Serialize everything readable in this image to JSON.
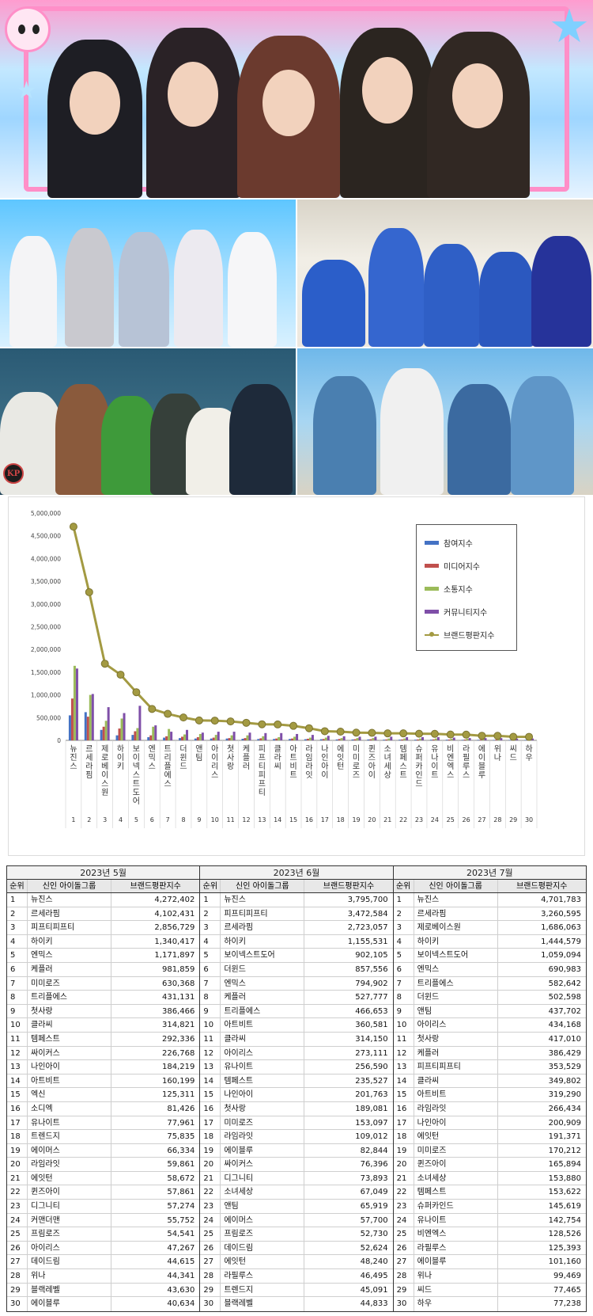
{
  "photos": [
    {
      "label": "group-photo-top"
    },
    {
      "label": "group-photo-middle-left"
    },
    {
      "label": "group-photo-middle-right"
    },
    {
      "label": "group-photo-bottom-left"
    },
    {
      "label": "group-photo-bottom-right"
    }
  ],
  "chart_data": {
    "type": "bar",
    "categories": [
      "뉴진스",
      "르세라핌",
      "제로베이스원",
      "하이키",
      "보이넥스트도어",
      "엔믹스",
      "트리플에스",
      "더윈드",
      "앤팀",
      "아이리스",
      "첫사랑",
      "케플러",
      "피프티피프티",
      "클라씨",
      "아트비트",
      "라임라잇",
      "나인아이",
      "에잇턴",
      "미미로즈",
      "퀸즈아이",
      "소녀세상",
      "템페스트",
      "슈퍼카인드",
      "유나이트",
      "비엔엑스",
      "라필루스",
      "에이블루",
      "위나",
      "씨드",
      "하우"
    ],
    "rank_labels": [
      "1",
      "2",
      "3",
      "4",
      "5",
      "6",
      "7",
      "8",
      "9",
      "10",
      "11",
      "12",
      "13",
      "14",
      "15",
      "16",
      "17",
      "18",
      "19",
      "20",
      "21",
      "22",
      "23",
      "24",
      "25",
      "26",
      "27",
      "28",
      "29",
      "30"
    ],
    "series": [
      {
        "name": "참여지수",
        "type": "bar",
        "values": [
          550000,
          620000,
          230000,
          110000,
          120000,
          70000,
          60000,
          50000,
          40000,
          40000,
          40000,
          35000,
          30000,
          30000,
          30000,
          25000,
          25000,
          20000,
          20000,
          20000,
          15000,
          15000,
          15000,
          15000,
          15000,
          12000,
          12000,
          10000,
          10000,
          10000
        ]
      },
      {
        "name": "미디어지수",
        "type": "bar",
        "values": [
          920000,
          520000,
          300000,
          260000,
          200000,
          110000,
          90000,
          80000,
          70000,
          60000,
          50000,
          50000,
          45000,
          40000,
          40000,
          35000,
          30000,
          30000,
          25000,
          25000,
          20000,
          20000,
          20000,
          20000,
          18000,
          18000,
          15000,
          15000,
          12000,
          12000
        ]
      },
      {
        "name": "소통지수",
        "type": "bar",
        "values": [
          1640000,
          1000000,
          430000,
          480000,
          270000,
          300000,
          250000,
          130000,
          140000,
          120000,
          110000,
          110000,
          90000,
          70000,
          80000,
          60000,
          60000,
          50000,
          50000,
          50000,
          40000,
          40000,
          40000,
          40000,
          35000,
          35000,
          30000,
          30000,
          25000,
          25000
        ]
      },
      {
        "name": "커뮤니티지수",
        "type": "bar",
        "values": [
          1580000,
          1020000,
          730000,
          600000,
          760000,
          330000,
          190000,
          230000,
          170000,
          190000,
          190000,
          170000,
          160000,
          160000,
          140000,
          120000,
          100000,
          90000,
          80000,
          80000,
          80000,
          70000,
          70000,
          70000,
          60000,
          50000,
          50000,
          50000,
          40000,
          40000
        ]
      },
      {
        "name": "브랜드평판지수",
        "type": "line",
        "values": [
          4701783,
          3260595,
          1686063,
          1444579,
          1059094,
          690983,
          582642,
          502598,
          437702,
          434168,
          417010,
          386429,
          353529,
          349802,
          319290,
          266434,
          200909,
          191371,
          170212,
          165894,
          153880,
          153622,
          145619,
          142754,
          128526,
          125393,
          101160,
          99469,
          77465,
          77238
        ]
      }
    ],
    "y_ticks": [
      "5,000,000",
      "4,500,000",
      "4,000,000",
      "3,500,000",
      "3,000,000",
      "2,500,000",
      "2,000,000",
      "1,500,000",
      "1,000,000",
      "500,000",
      "0"
    ],
    "ylim": [
      0,
      5000000
    ],
    "legend_position": "top-right",
    "colors": {
      "참여지수": "#4472c4",
      "미디어지수": "#c0504d",
      "소통지수": "#9bbb59",
      "커뮤니티지수": "#7f4fa8",
      "브랜드평판지수": "#a39a42"
    }
  },
  "table": {
    "header": {
      "rank": "순위",
      "group": "신인 아이돌그룹",
      "score": "브랜드평판지수"
    },
    "blocks": [
      {
        "title": "2023년 5월",
        "rows": [
          [
            "1",
            "뉴진스",
            "4,272,402"
          ],
          [
            "2",
            "르세라핌",
            "4,102,431"
          ],
          [
            "3",
            "피프티피프티",
            "2,856,729"
          ],
          [
            "4",
            "하이키",
            "1,340,417"
          ],
          [
            "5",
            "엔믹스",
            "1,171,897"
          ],
          [
            "6",
            "케플러",
            "981,859"
          ],
          [
            "7",
            "미미로즈",
            "630,368"
          ],
          [
            "8",
            "트리플에스",
            "431,131"
          ],
          [
            "9",
            "첫사랑",
            "386,466"
          ],
          [
            "10",
            "클라씨",
            "314,821"
          ],
          [
            "11",
            "템페스트",
            "292,336"
          ],
          [
            "12",
            "싸이커스",
            "226,768"
          ],
          [
            "13",
            "나인아이",
            "184,219"
          ],
          [
            "14",
            "아트비트",
            "160,199"
          ],
          [
            "15",
            "엑신",
            "125,311"
          ],
          [
            "16",
            "소디엑",
            "81,426"
          ],
          [
            "17",
            "유나이트",
            "77,961"
          ],
          [
            "18",
            "트렌드지",
            "75,835"
          ],
          [
            "19",
            "에이머스",
            "66,334"
          ],
          [
            "20",
            "라임라잇",
            "59,861"
          ],
          [
            "21",
            "에잇턴",
            "58,672"
          ],
          [
            "22",
            "퀸즈아이",
            "57,861"
          ],
          [
            "23",
            "디그니티",
            "57,274"
          ],
          [
            "24",
            "커맨더맨",
            "55,752"
          ],
          [
            "25",
            "프림로즈",
            "54,541"
          ],
          [
            "26",
            "아이리스",
            "47,267"
          ],
          [
            "27",
            "데이드림",
            "44,615"
          ],
          [
            "28",
            "위나",
            "44,341"
          ],
          [
            "29",
            "블랙레벨",
            "43,630"
          ],
          [
            "30",
            "에이블루",
            "40,634"
          ]
        ]
      },
      {
        "title": "2023년 6월",
        "rows": [
          [
            "1",
            "뉴진스",
            "3,795,700"
          ],
          [
            "2",
            "피프티피프티",
            "3,472,584"
          ],
          [
            "3",
            "르세라핌",
            "2,723,057"
          ],
          [
            "4",
            "하이키",
            "1,155,531"
          ],
          [
            "5",
            "보이넥스트도어",
            "902,105"
          ],
          [
            "6",
            "더윈드",
            "857,556"
          ],
          [
            "7",
            "엔믹스",
            "794,902"
          ],
          [
            "8",
            "케플러",
            "527,777"
          ],
          [
            "9",
            "트리플에스",
            "466,653"
          ],
          [
            "10",
            "아트비트",
            "360,581"
          ],
          [
            "11",
            "클라씨",
            "314,150"
          ],
          [
            "12",
            "아이리스",
            "273,111"
          ],
          [
            "13",
            "유나이트",
            "256,590"
          ],
          [
            "14",
            "템페스트",
            "235,527"
          ],
          [
            "15",
            "나인아이",
            "201,763"
          ],
          [
            "16",
            "첫사랑",
            "189,081"
          ],
          [
            "17",
            "미미로즈",
            "153,097"
          ],
          [
            "18",
            "라임라잇",
            "109,012"
          ],
          [
            "19",
            "에이블루",
            "82,844"
          ],
          [
            "20",
            "싸이커스",
            "76,396"
          ],
          [
            "21",
            "디그니티",
            "73,893"
          ],
          [
            "22",
            "소녀세상",
            "67,049"
          ],
          [
            "23",
            "앤팀",
            "65,919"
          ],
          [
            "24",
            "에이머스",
            "57,700"
          ],
          [
            "25",
            "프림로즈",
            "52,730"
          ],
          [
            "26",
            "데이드림",
            "52,624"
          ],
          [
            "27",
            "에잇턴",
            "48,240"
          ],
          [
            "28",
            "라필루스",
            "46,495"
          ],
          [
            "29",
            "트렌드지",
            "45,091"
          ],
          [
            "30",
            "블랙레벨",
            "44,833"
          ]
        ]
      },
      {
        "title": "2023년 7월",
        "rows": [
          [
            "1",
            "뉴진스",
            "4,701,783"
          ],
          [
            "2",
            "르세라핌",
            "3,260,595"
          ],
          [
            "3",
            "제로베이스원",
            "1,686,063"
          ],
          [
            "4",
            "하이키",
            "1,444,579"
          ],
          [
            "5",
            "보이넥스트도어",
            "1,059,094"
          ],
          [
            "6",
            "엔믹스",
            "690,983"
          ],
          [
            "7",
            "트리플에스",
            "582,642"
          ],
          [
            "8",
            "더윈드",
            "502,598"
          ],
          [
            "9",
            "앤팀",
            "437,702"
          ],
          [
            "10",
            "아이리스",
            "434,168"
          ],
          [
            "11",
            "첫사랑",
            "417,010"
          ],
          [
            "12",
            "케플러",
            "386,429"
          ],
          [
            "13",
            "피프티피프티",
            "353,529"
          ],
          [
            "14",
            "클라씨",
            "349,802"
          ],
          [
            "15",
            "아트비트",
            "319,290"
          ],
          [
            "16",
            "라임라잇",
            "266,434"
          ],
          [
            "17",
            "나인아이",
            "200,909"
          ],
          [
            "18",
            "에잇턴",
            "191,371"
          ],
          [
            "19",
            "미미로즈",
            "170,212"
          ],
          [
            "20",
            "퀸즈아이",
            "165,894"
          ],
          [
            "21",
            "소녀세상",
            "153,880"
          ],
          [
            "22",
            "템페스트",
            "153,622"
          ],
          [
            "23",
            "슈퍼카인드",
            "145,619"
          ],
          [
            "24",
            "유나이트",
            "142,754"
          ],
          [
            "25",
            "비엔엑스",
            "128,526"
          ],
          [
            "26",
            "라필루스",
            "125,393"
          ],
          [
            "27",
            "에이블루",
            "101,160"
          ],
          [
            "28",
            "위나",
            "99,469"
          ],
          [
            "29",
            "씨드",
            "77,465"
          ],
          [
            "30",
            "하우",
            "77,238"
          ]
        ]
      }
    ]
  }
}
